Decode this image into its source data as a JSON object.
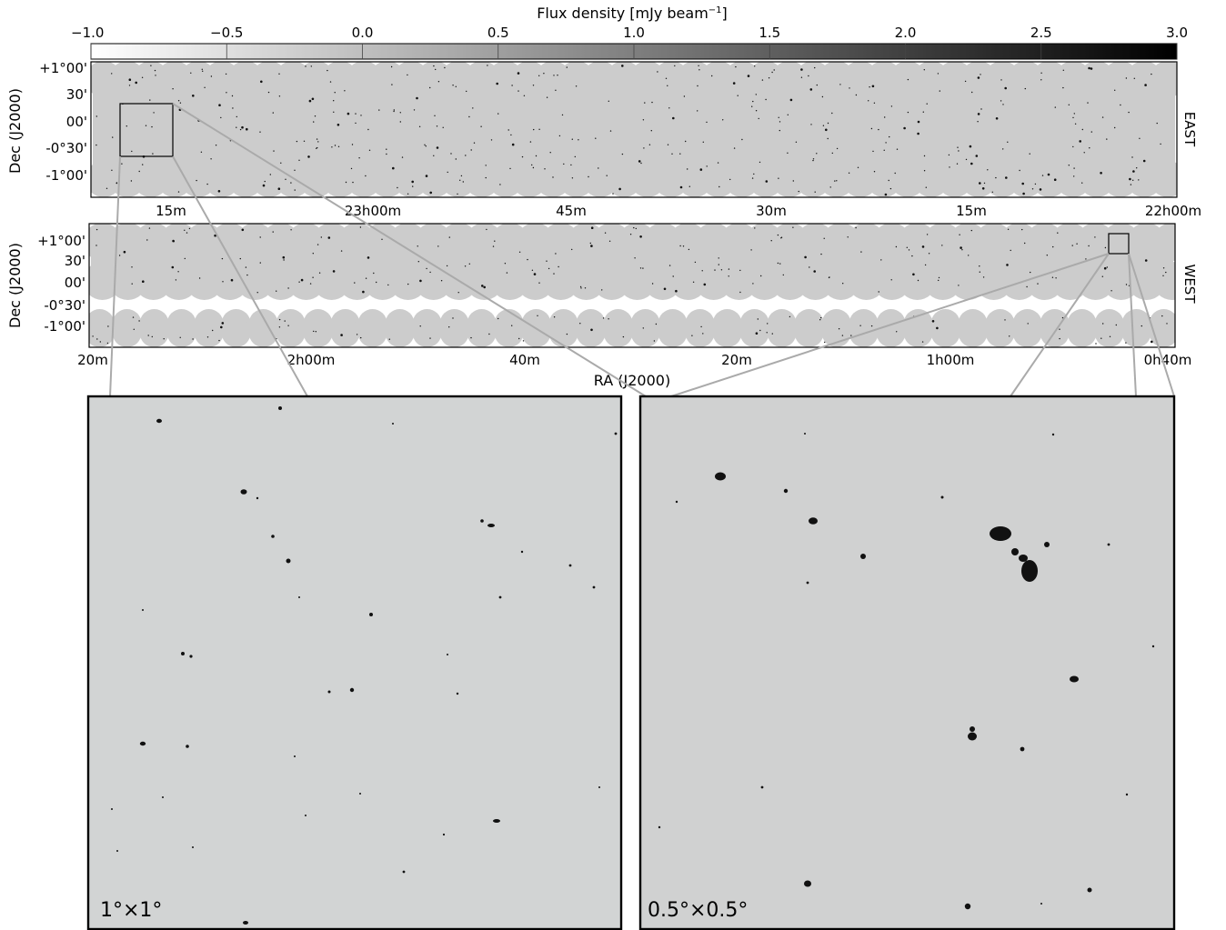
{
  "colorbar": {
    "title": "Flux density [mJy beam",
    "title_sup": "−1",
    "title_end": "]",
    "ticks": [
      "−1.0",
      "−0.5",
      "0.0",
      "0.5",
      "1.0",
      "1.5",
      "2.0",
      "2.5",
      "3.0"
    ],
    "tick_values": [
      -1.0,
      -0.5,
      0.0,
      0.5,
      1.0,
      1.5,
      2.0,
      2.5,
      3.0
    ],
    "range": [
      -1.0,
      3.0
    ],
    "colormap": "grayscale (white low, black high)"
  },
  "chart_data": [
    {
      "type": "heatmap",
      "panel": "EAST",
      "side_label": "EAST",
      "ylabel": "Dec (J2000)",
      "xticks": [
        "15m",
        "23h00m",
        "45m",
        "30m",
        "15m",
        "22h00m"
      ],
      "yticks": [
        "+1°00'",
        "30'",
        "00'",
        "-0°30'",
        "-1°00'"
      ],
      "background_color": "#cccccc",
      "zoom_box": "upper-left region, expanded in panel 1°×1°"
    },
    {
      "type": "heatmap",
      "panel": "WEST",
      "side_label": "WEST",
      "ylabel": "Dec (J2000)",
      "xlabel": "RA (J2000)",
      "xticks": [
        "20m",
        "2h00m",
        "40m",
        "20m",
        "1h00m",
        "0h40m"
      ],
      "yticks": [
        "+1°00'",
        "30'",
        "00'",
        "-0°30'",
        "-1°00'"
      ],
      "background_color": "#cccccc",
      "zoom_box": "upper-right region, expanded in panel 0.5°×0.5°"
    },
    {
      "type": "heatmap",
      "panel": "zoom-1deg",
      "label": "1°×1°",
      "background_color": "#d2d4d4"
    },
    {
      "type": "heatmap",
      "panel": "zoom-0.5deg",
      "label": "0.5°×0.5°",
      "background_color": "#d0d1d1"
    }
  ],
  "colors": {
    "field_gray": "#cccccc",
    "zoom_bg_left": "#d2d4d4",
    "zoom_bg_right": "#d0d1d1",
    "source": "#111111",
    "connector": "#aaaaaa"
  }
}
